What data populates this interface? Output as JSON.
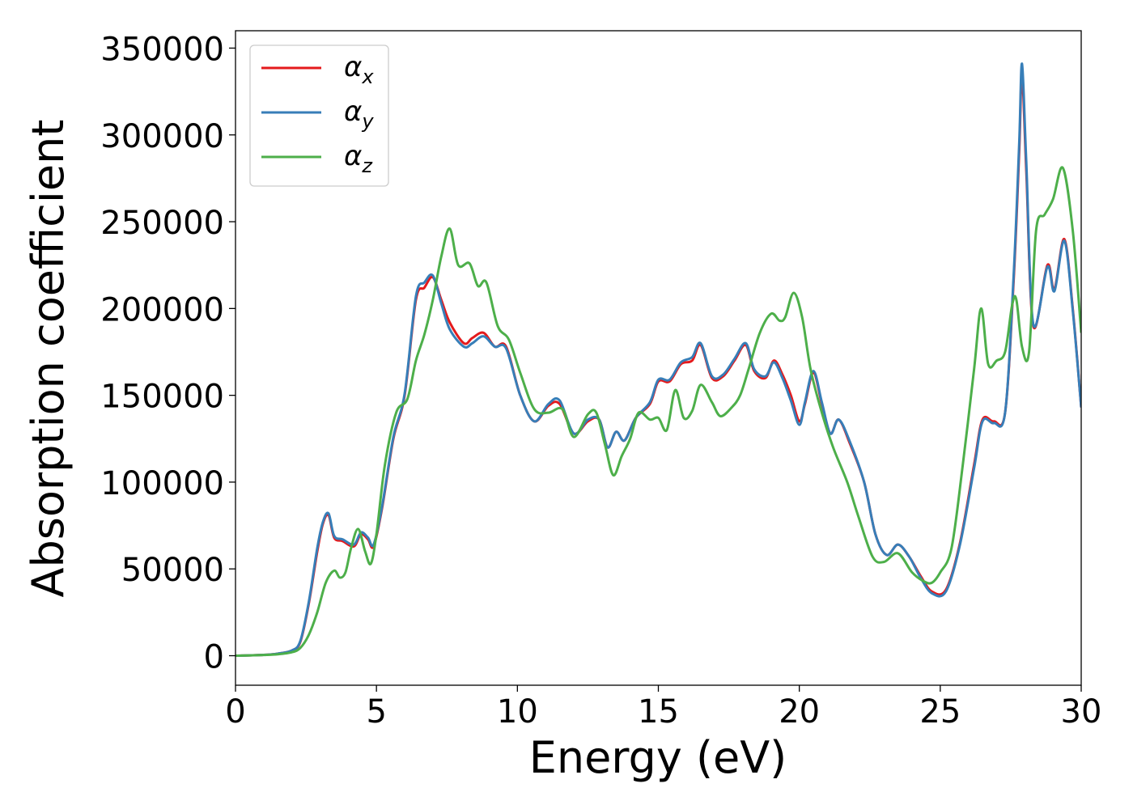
{
  "chart_data": {
    "type": "line",
    "title": "",
    "xlabel": "Energy (eV)",
    "ylabel": "Absorption coefficient",
    "xlim": [
      0,
      30
    ],
    "ylim": [
      -17000,
      360000
    ],
    "xticks": [
      0,
      5,
      10,
      15,
      20,
      25,
      30
    ],
    "xtick_labels": [
      "0",
      "5",
      "10",
      "15",
      "20",
      "25",
      "30"
    ],
    "yticks": [
      0,
      50000,
      100000,
      150000,
      200000,
      250000,
      300000,
      350000
    ],
    "ytick_labels": [
      "0",
      "50000",
      "100000",
      "150000",
      "200000",
      "250000",
      "300000",
      "350000"
    ],
    "grid": false,
    "legend_position": "top-left",
    "series": [
      {
        "name": "α",
        "subscript": "x",
        "color": "#e41a1c",
        "x": [
          0,
          1,
          1.5,
          2,
          2.3,
          2.6,
          2.9,
          3.1,
          3.3,
          3.5,
          3.8,
          4.2,
          4.45,
          4.7,
          4.9,
          5.2,
          5.6,
          6.0,
          6.4,
          6.7,
          7.0,
          7.3,
          7.6,
          8.1,
          8.4,
          8.8,
          9.2,
          9.6,
          10.1,
          10.6,
          11.1,
          11.5,
          12.0,
          12.5,
          12.9,
          13.2,
          13.5,
          13.8,
          14.2,
          14.7,
          15.0,
          15.4,
          15.8,
          16.2,
          16.5,
          16.9,
          17.3,
          17.7,
          18.1,
          18.4,
          18.8,
          19.1,
          19.4,
          19.7,
          20.0,
          20.2,
          20.5,
          20.8,
          21.1,
          21.4,
          21.8,
          22.3,
          22.7,
          23.1,
          23.5,
          23.9,
          24.3,
          24.7,
          25.2,
          25.7,
          26.2,
          26.5,
          26.9,
          27.3,
          27.6,
          27.8,
          27.9,
          28.05,
          28.3,
          28.8,
          29.05,
          29.4,
          29.7,
          30.0
        ],
        "values": [
          0,
          500,
          1200,
          3000,
          8000,
          30000,
          60000,
          76000,
          81000,
          68000,
          66000,
          63000,
          70000,
          67000,
          63000,
          85000,
          125000,
          150000,
          205000,
          212000,
          218000,
          205000,
          192000,
          180000,
          183000,
          186000,
          178000,
          178000,
          150000,
          135000,
          144000,
          145000,
          128000,
          135000,
          136000,
          120000,
          129000,
          124000,
          137000,
          145000,
          158000,
          158000,
          168000,
          170000,
          179000,
          160000,
          161000,
          170000,
          179000,
          164000,
          160000,
          170000,
          162000,
          150000,
          135000,
          145000,
          163000,
          145000,
          128000,
          136000,
          122000,
          100000,
          70000,
          58000,
          64000,
          57000,
          46000,
          37000,
          38000,
          65000,
          110000,
          136000,
          135000,
          140000,
          215000,
          290000,
          335000,
          280000,
          190000,
          225000,
          211000,
          240000,
          200000,
          143000
        ]
      },
      {
        "name": "α",
        "subscript": "y",
        "color": "#377eb8",
        "x": [
          0,
          1,
          1.5,
          2,
          2.3,
          2.6,
          2.9,
          3.1,
          3.3,
          3.5,
          3.8,
          4.2,
          4.45,
          4.7,
          4.9,
          5.2,
          5.6,
          6.0,
          6.4,
          6.7,
          7.0,
          7.3,
          7.6,
          8.1,
          8.4,
          8.8,
          9.2,
          9.6,
          10.1,
          10.6,
          11.1,
          11.5,
          12.0,
          12.5,
          12.9,
          13.2,
          13.5,
          13.8,
          14.2,
          14.7,
          15.0,
          15.4,
          15.8,
          16.2,
          16.5,
          16.9,
          17.3,
          17.7,
          18.1,
          18.4,
          18.8,
          19.1,
          19.4,
          19.7,
          20.0,
          20.2,
          20.5,
          20.8,
          21.1,
          21.4,
          21.8,
          22.3,
          22.7,
          23.1,
          23.5,
          23.9,
          24.3,
          24.7,
          25.2,
          25.7,
          26.2,
          26.5,
          26.9,
          27.3,
          27.6,
          27.8,
          27.9,
          28.05,
          28.3,
          28.8,
          29.05,
          29.4,
          29.7,
          30.0
        ],
        "values": [
          0,
          500,
          1200,
          3000,
          8500,
          31000,
          62000,
          77000,
          82000,
          69000,
          67000,
          64000,
          71000,
          68000,
          64000,
          86000,
          126000,
          151000,
          207000,
          215000,
          219000,
          203000,
          188000,
          178000,
          180000,
          184000,
          178000,
          177000,
          150000,
          135000,
          145000,
          147000,
          128000,
          136000,
          136000,
          120000,
          129000,
          124000,
          137000,
          146000,
          159000,
          159000,
          169000,
          172000,
          180000,
          161000,
          162000,
          171000,
          180000,
          165000,
          161000,
          169000,
          160000,
          147000,
          133000,
          146000,
          164000,
          146000,
          128000,
          136000,
          123000,
          100000,
          70000,
          58000,
          64000,
          57000,
          45000,
          36000,
          37000,
          64000,
          108000,
          135000,
          134000,
          140000,
          218000,
          295000,
          341000,
          285000,
          191000,
          224000,
          210000,
          239000,
          199000,
          143000
        ]
      },
      {
        "name": "α",
        "subscript": "z",
        "color": "#4daf4a",
        "x": [
          0,
          1,
          1.5,
          2,
          2.3,
          2.6,
          2.9,
          3.2,
          3.5,
          3.7,
          3.9,
          4.1,
          4.35,
          4.6,
          4.8,
          5.0,
          5.3,
          5.7,
          6.1,
          6.4,
          6.7,
          7.0,
          7.3,
          7.6,
          7.9,
          8.3,
          8.6,
          8.9,
          9.3,
          9.7,
          10.1,
          10.6,
          11.1,
          11.6,
          12.0,
          12.5,
          12.8,
          13.1,
          13.4,
          13.7,
          14.0,
          14.3,
          14.7,
          15.0,
          15.3,
          15.6,
          15.9,
          16.2,
          16.5,
          16.9,
          17.2,
          17.6,
          17.9,
          18.2,
          18.6,
          19.0,
          19.3,
          19.5,
          19.8,
          20.1,
          20.4,
          20.8,
          21.2,
          21.7,
          22.1,
          22.6,
          23.0,
          23.5,
          24.0,
          24.4,
          24.7,
          25.0,
          25.4,
          25.8,
          26.2,
          26.45,
          26.7,
          27.0,
          27.3,
          27.55,
          27.7,
          27.9,
          28.15,
          28.4,
          28.7,
          29.0,
          29.35,
          29.7,
          30.0
        ],
        "values": [
          0,
          400,
          800,
          2000,
          4500,
          12000,
          25000,
          42000,
          49000,
          45000,
          48000,
          62000,
          73000,
          60000,
          53000,
          70000,
          110000,
          140000,
          148000,
          170000,
          185000,
          205000,
          230000,
          246000,
          225000,
          226000,
          213000,
          215000,
          190000,
          182000,
          163000,
          142000,
          140000,
          142000,
          126000,
          139000,
          140000,
          122000,
          104000,
          115000,
          125000,
          140000,
          136000,
          137000,
          130000,
          153000,
          137000,
          141000,
          156000,
          146000,
          138000,
          143000,
          150000,
          165000,
          186000,
          197000,
          193000,
          195000,
          209000,
          195000,
          165000,
          140000,
          120000,
          100000,
          80000,
          57000,
          54000,
          59000,
          48000,
          43000,
          42000,
          48000,
          62000,
          110000,
          165000,
          200000,
          168000,
          170000,
          175000,
          202000,
          205000,
          178000,
          175000,
          245000,
          254000,
          263000,
          281000,
          245000,
          186000
        ]
      }
    ]
  }
}
